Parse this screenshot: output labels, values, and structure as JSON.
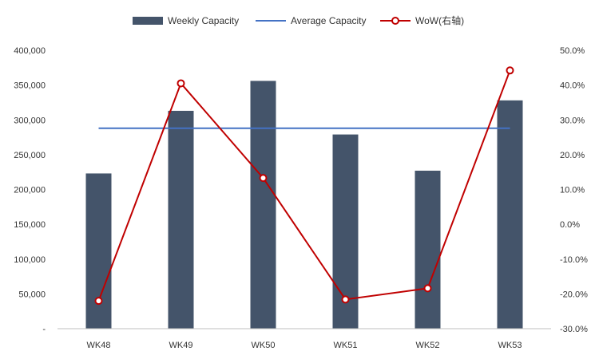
{
  "chart_data": {
    "type": "bar",
    "categories": [
      "WK48",
      "WK49",
      "WK50",
      "WK51",
      "WK52",
      "WK53"
    ],
    "series": [
      {
        "name": "Weekly Capacity",
        "kind": "bar",
        "axis": "left",
        "color": "#44546a",
        "values": [
          223000,
          313000,
          356000,
          279000,
          227000,
          328000
        ]
      },
      {
        "name": "Average Capacity",
        "kind": "line",
        "axis": "left",
        "color": "#4472c4",
        "values": [
          288000,
          288000,
          288000,
          288000,
          288000,
          288000
        ]
      },
      {
        "name": "WoW(右轴)",
        "kind": "line-marker",
        "axis": "right",
        "color": "#c00000",
        "values": [
          -0.22,
          0.405,
          0.133,
          -0.216,
          -0.184,
          0.442
        ]
      }
    ],
    "y_left": {
      "min": 0,
      "max": 400000,
      "step": 50000,
      "tick_labels": [
        "-",
        "50,000",
        "100,000",
        "150,000",
        "200,000",
        "250,000",
        "300,000",
        "350,000",
        "400,000"
      ]
    },
    "y_right": {
      "min": -0.3,
      "max": 0.5,
      "step": 0.1,
      "tick_labels": [
        "-30.0%",
        "-20.0%",
        "-10.0%",
        "0.0%",
        "10.0%",
        "20.0%",
        "30.0%",
        "40.0%",
        "50.0%"
      ]
    },
    "legend_position": "top-center",
    "grid": false
  }
}
